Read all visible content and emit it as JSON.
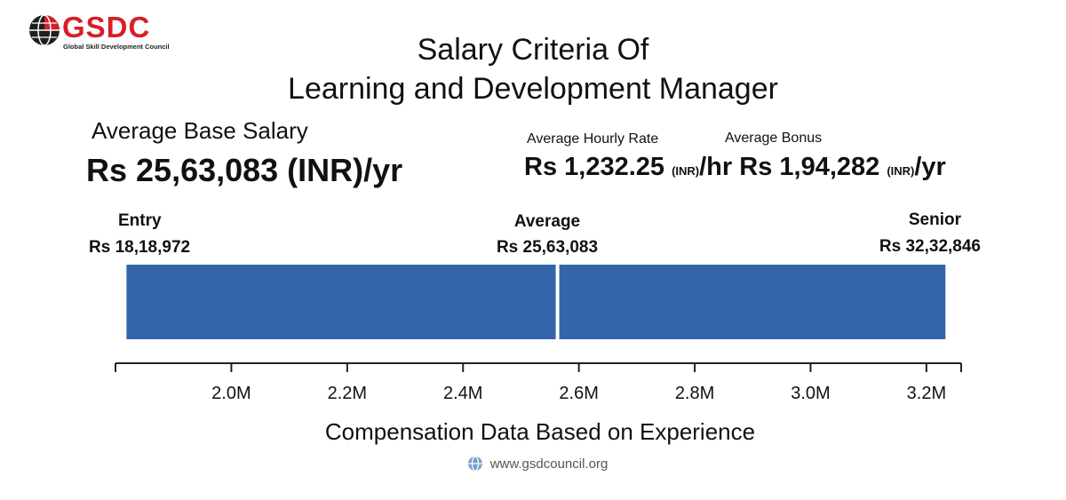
{
  "logo": {
    "text": "GSDC",
    "subtitle": "Global Skill Development Council"
  },
  "title": {
    "line1": "Salary Criteria Of",
    "line2": "Learning and Development Manager"
  },
  "average_base": {
    "label": "Average Base Salary",
    "value": "Rs 25,63,083 (INR)/yr"
  },
  "hourly": {
    "label": "Average Hourly Rate",
    "value": "Rs 1,232.25",
    "unit": "(INR)",
    "suffix": "/hr"
  },
  "bonus": {
    "label": "Average Bonus",
    "value": "Rs 1,94,282",
    "unit": "(INR)",
    "suffix": "/yr"
  },
  "levels": {
    "entry": {
      "name": "Entry",
      "value": "Rs 18,18,972"
    },
    "average": {
      "name": "Average",
      "value": "Rs 25,63,083"
    },
    "senior": {
      "name": "Senior",
      "value": "Rs 32,32,846"
    }
  },
  "chart_data": {
    "type": "bar",
    "orientation": "horizontal",
    "series": [
      {
        "from": 1818972,
        "to": 2563083
      },
      {
        "from": 2563083,
        "to": 3232846
      }
    ],
    "xlim": [
      1800000,
      3260000
    ],
    "ticks": [
      2000000,
      2200000,
      2400000,
      2600000,
      2800000,
      3000000,
      3200000
    ],
    "tick_labels": [
      "2.0M",
      "2.2M",
      "2.4M",
      "2.6M",
      "2.8M",
      "3.0M",
      "3.2M"
    ],
    "xlabel": "Compensation Data Based on Experience",
    "bar_color": "#3465a9",
    "grid": false
  },
  "footer": {
    "url": "www.gsdcouncil.org"
  },
  "colors": {
    "brand": "#d71f26",
    "bar": "#3465a9"
  }
}
